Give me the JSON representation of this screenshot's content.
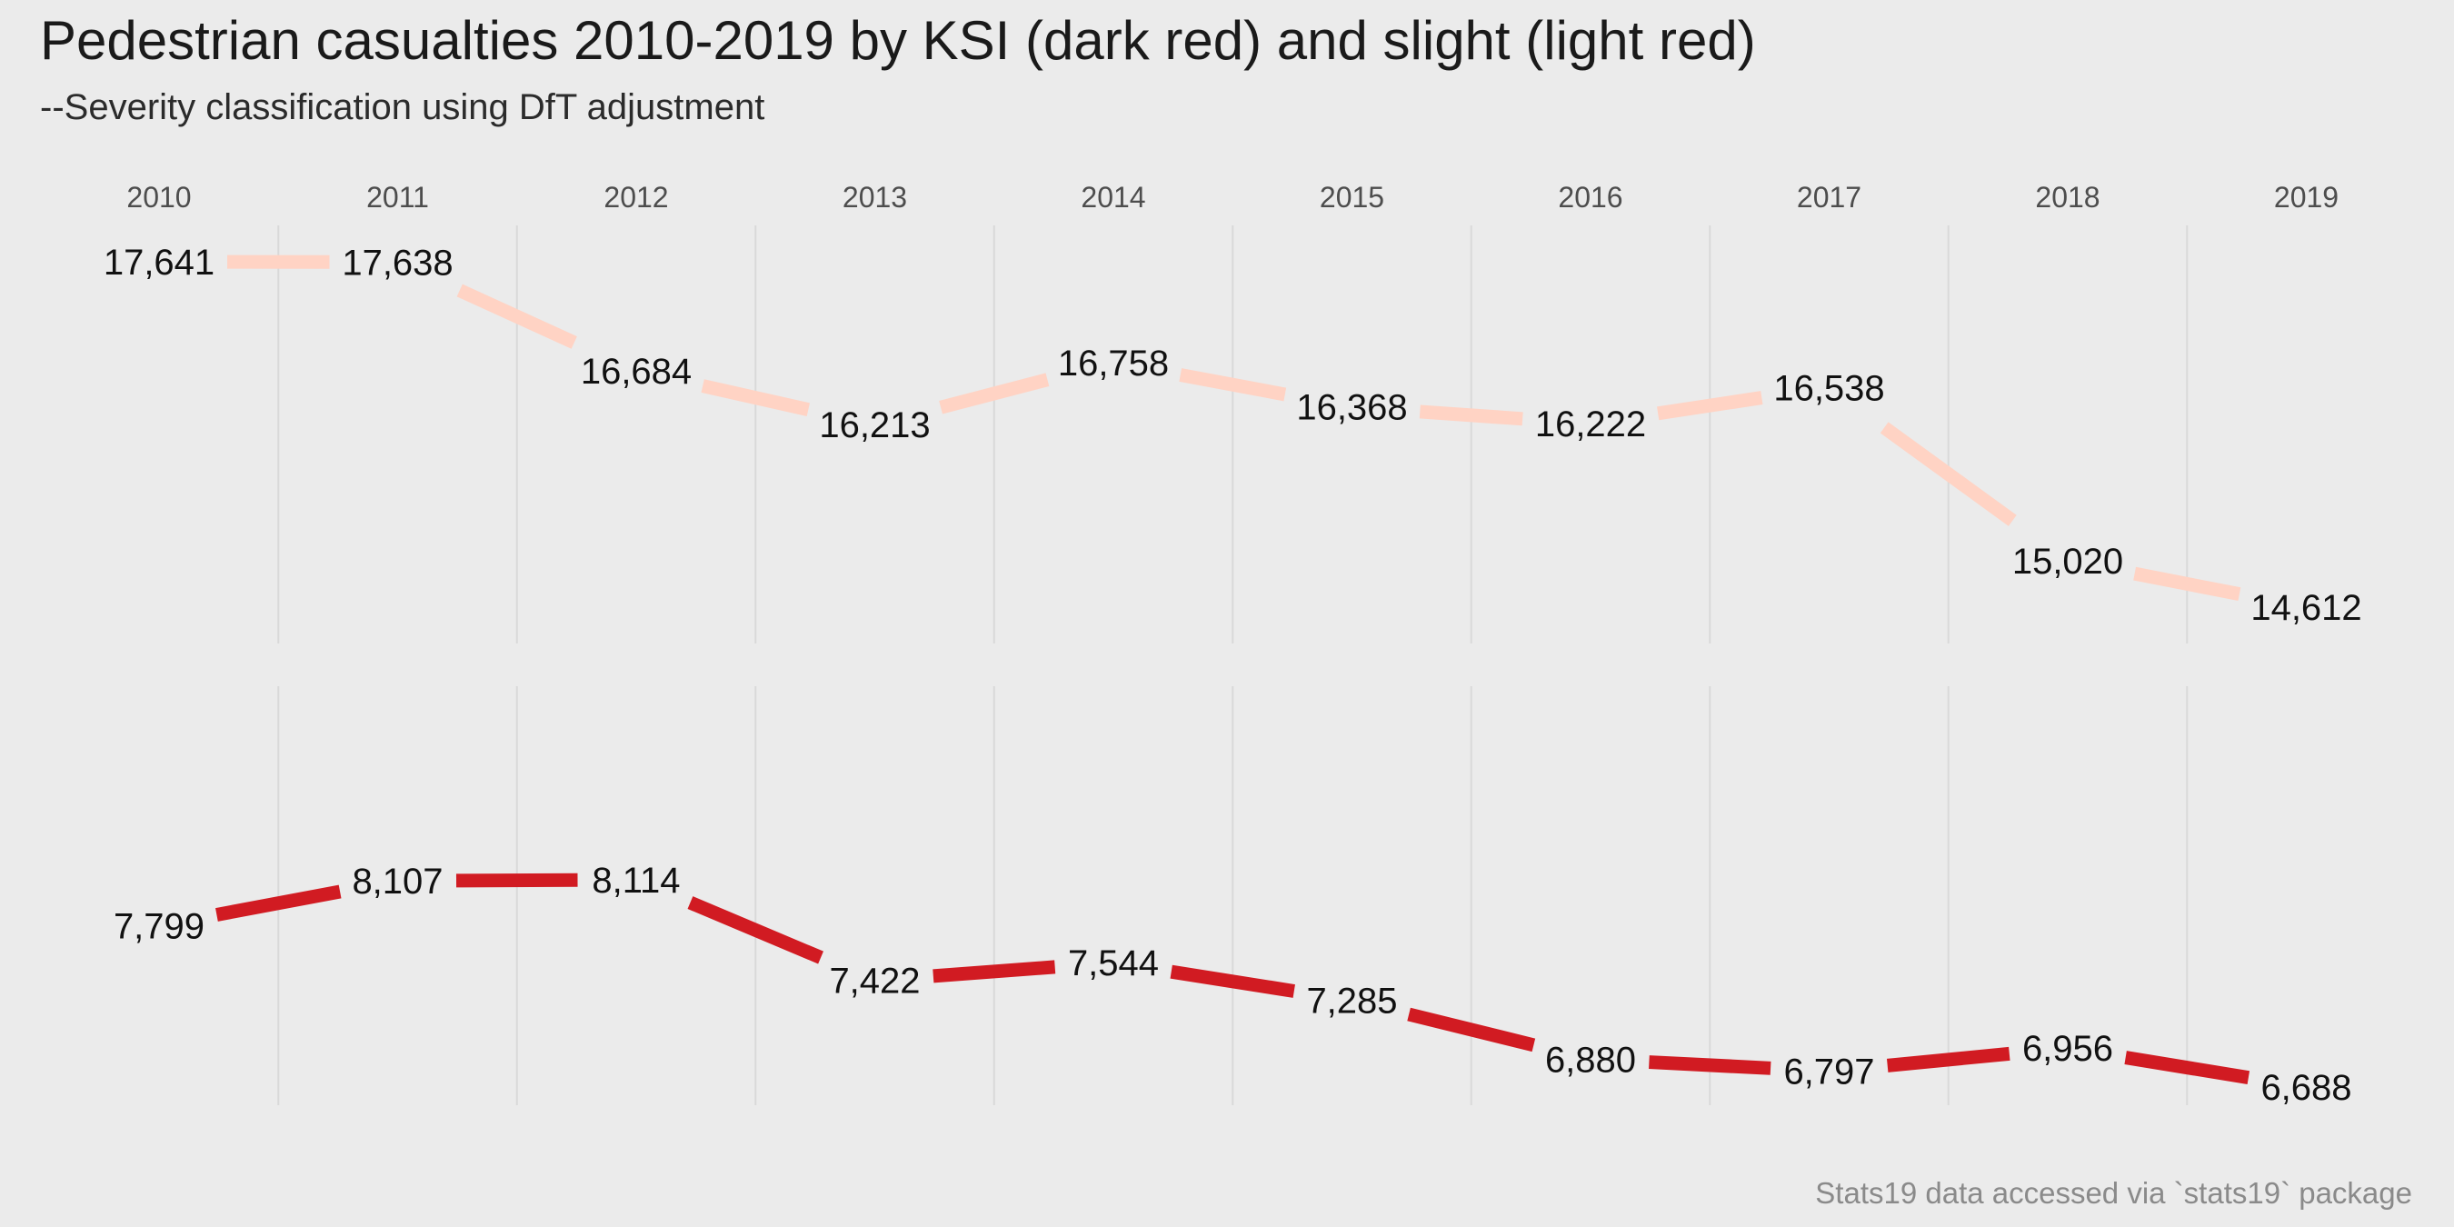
{
  "chart_data": {
    "type": "line",
    "title": "Pedestrian casualties 2010-2019 by KSI (dark red) and slight (light red)",
    "subtitle": "--Severity classification using DfT adjustment",
    "caption": "Stats19 data accessed via `stats19` package",
    "x": [
      "2010",
      "2011",
      "2012",
      "2013",
      "2014",
      "2015",
      "2016",
      "2017",
      "2018",
      "2019"
    ],
    "series": [
      {
        "color": "#ffd3c4",
        "values": [
          17641,
          17638,
          16684,
          16213,
          16758,
          16368,
          16222,
          16538,
          15020,
          14612
        ],
        "labels": [
          "17,641",
          "17,638",
          "16,684",
          "16,213",
          "16,758",
          "16,368",
          "16,222",
          "16,538",
          "15,020",
          "14,612"
        ]
      },
      {
        "color": "#d11b22",
        "values": [
          7799,
          8107,
          8114,
          7422,
          7544,
          7285,
          6880,
          6797,
          6956,
          6688
        ],
        "labels": [
          "7,799",
          "8,107",
          "8,114",
          "7,422",
          "7,544",
          "7,285",
          "6,880",
          "6,797",
          "6,956",
          "6,688"
        ]
      }
    ],
    "grid": true,
    "legend": "none"
  }
}
